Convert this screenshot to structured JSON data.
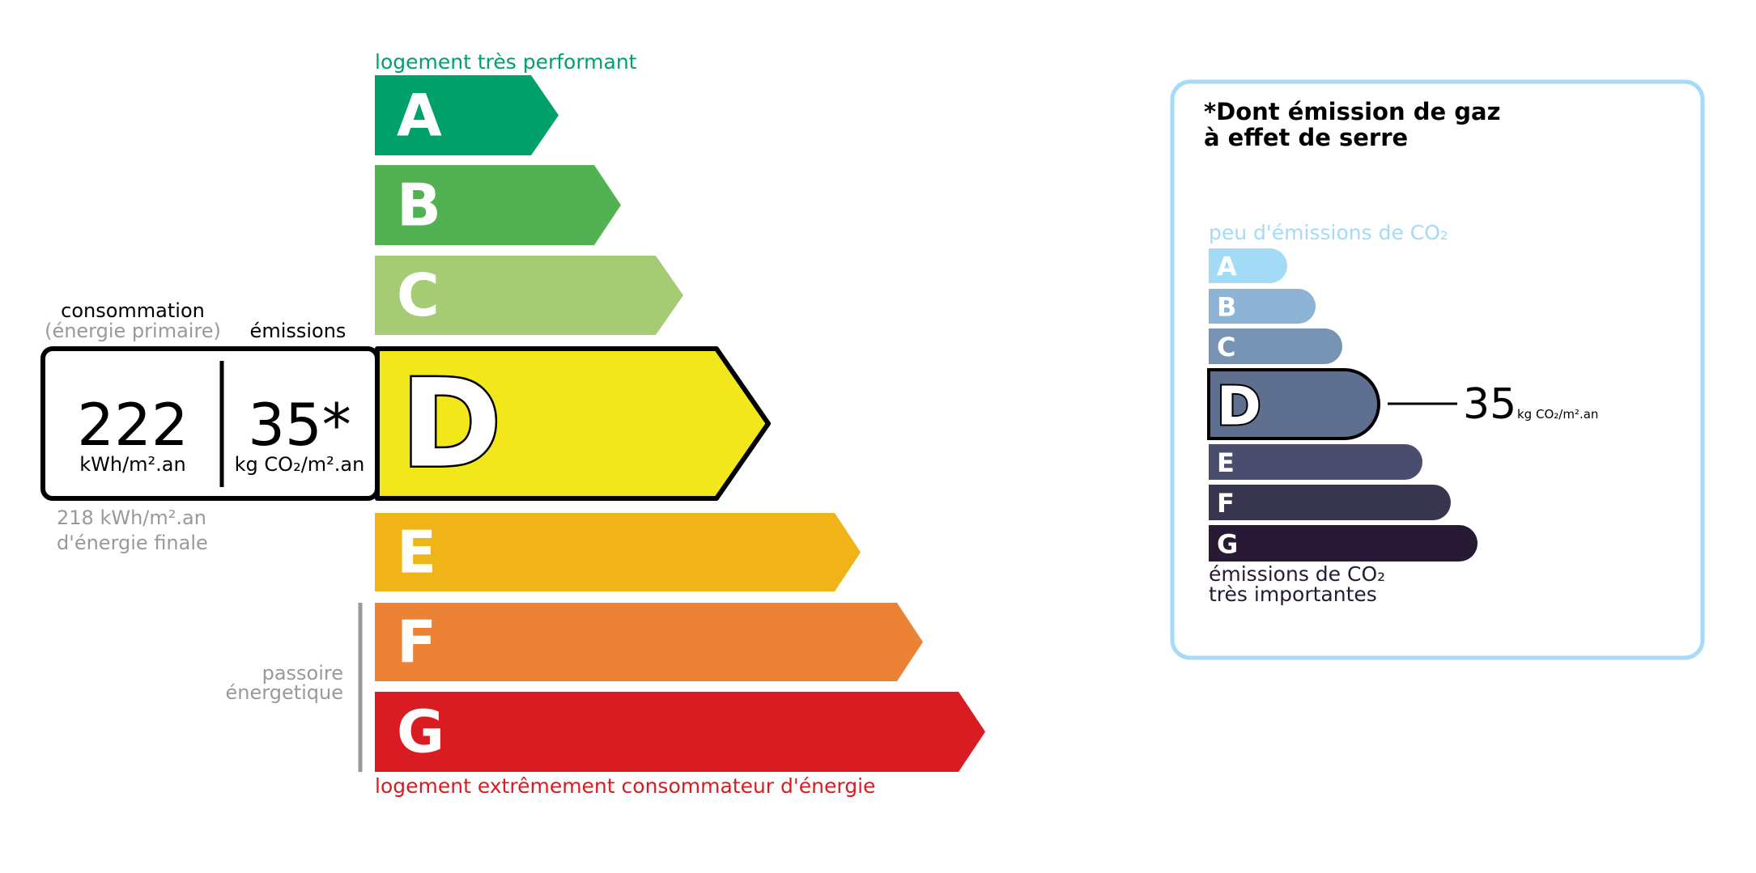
{
  "energy": {
    "top_label": "logement très performant",
    "bottom_label": "logement extrêmement consommateur d'énergie",
    "passoire_label_1": "passoire",
    "passoire_label_2": "énergetique",
    "current_class": "D",
    "classes": [
      {
        "letter": "A",
        "color": "#00a06b"
      },
      {
        "letter": "B",
        "color": "#52b153"
      },
      {
        "letter": "C",
        "color": "#a5cc74"
      },
      {
        "letter": "D",
        "color": "#f2e71b"
      },
      {
        "letter": "E",
        "color": "#f0b418"
      },
      {
        "letter": "F",
        "color": "#eb8235"
      },
      {
        "letter": "G",
        "color": "#d91c21"
      }
    ],
    "consumption_title": "consommation",
    "consumption_subtitle": "(énergie primaire)",
    "emissions_title": "émissions",
    "consumption_value": "222",
    "consumption_unit": "kWh/m².an",
    "emissions_value": "35*",
    "emissions_unit": "kg CO₂/m².an",
    "final_energy_value": "218 kWh/m².an",
    "final_energy_label": "d'énergie finale"
  },
  "ges": {
    "title_line1": "*Dont émission de gaz",
    "title_line2": "à effet de serre",
    "top_label": "peu d'émissions de CO₂",
    "bottom_label_1": "émissions de CO₂",
    "bottom_label_2": "très importantes",
    "current_class": "D",
    "value": "35",
    "unit": "kg CO₂/m².an",
    "border_color": "#a6daf6",
    "classes": [
      {
        "letter": "A",
        "color": "#a3dbf6"
      },
      {
        "letter": "B",
        "color": "#8db4d4"
      },
      {
        "letter": "C",
        "color": "#7794b4"
      },
      {
        "letter": "D",
        "color": "#5f6f8f"
      },
      {
        "letter": "E",
        "color": "#4b4d6e"
      },
      {
        "letter": "F",
        "color": "#38354f"
      },
      {
        "letter": "G",
        "color": "#281a35"
      }
    ]
  }
}
